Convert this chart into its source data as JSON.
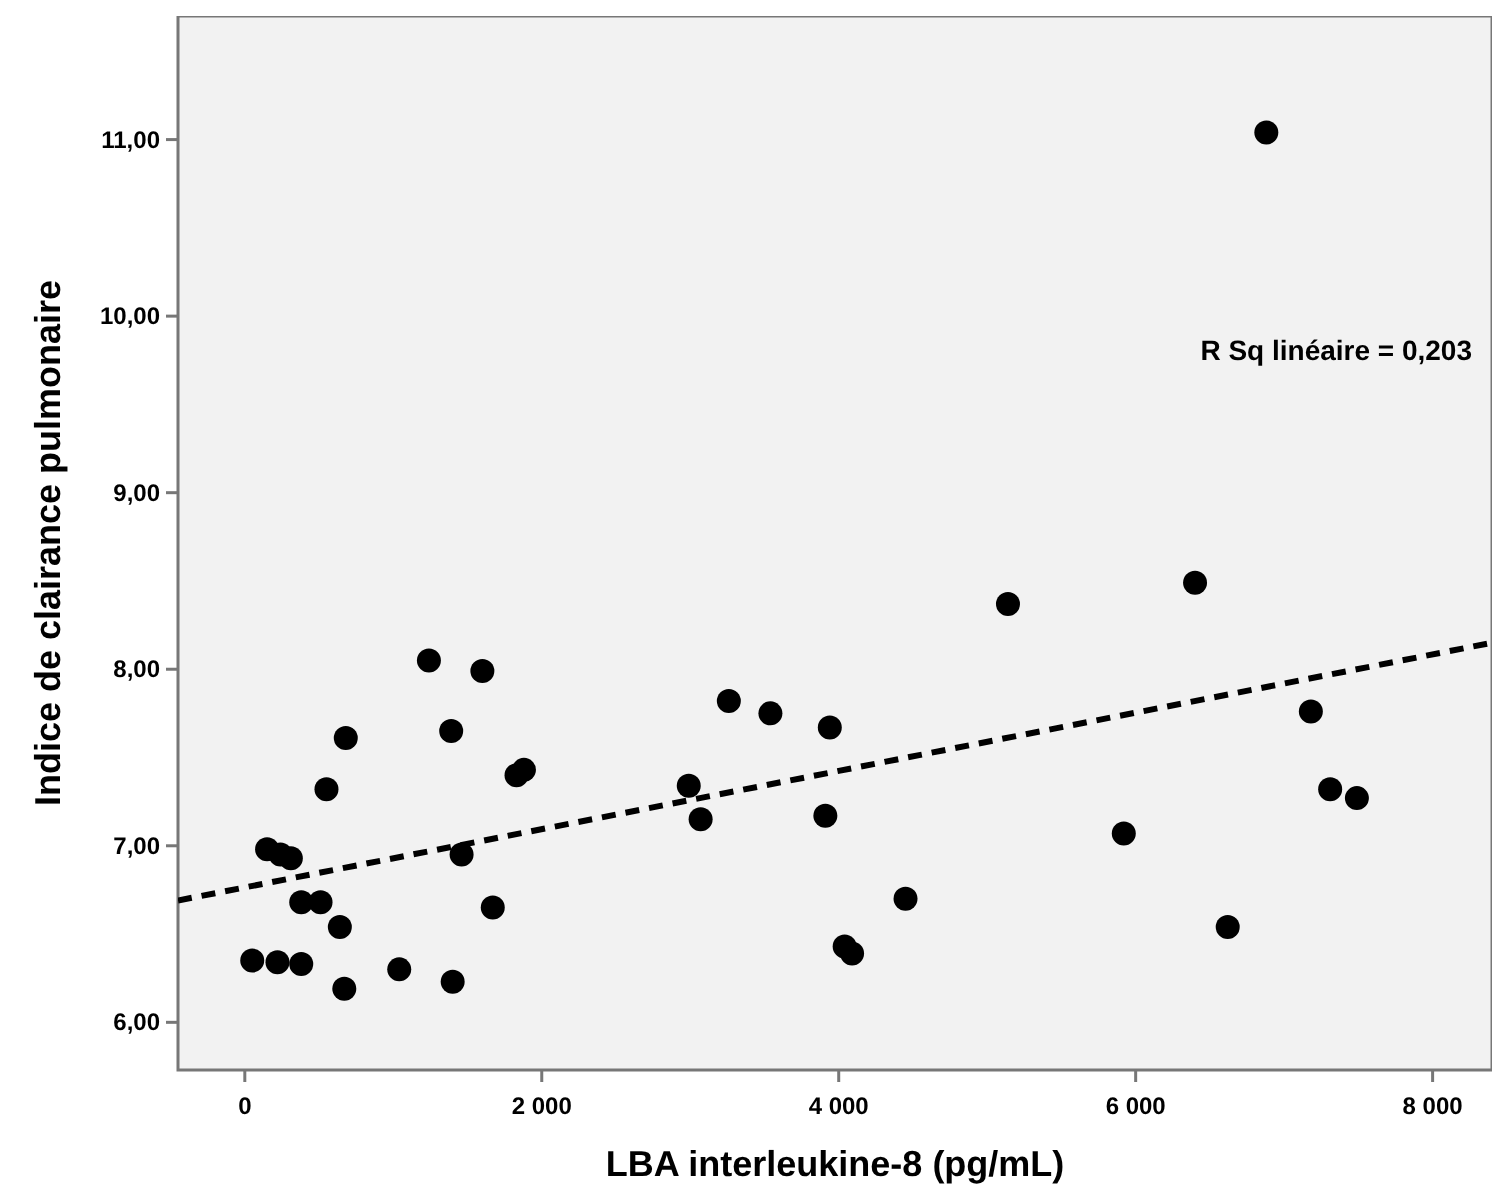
{
  "chart_data": {
    "type": "scatter",
    "xlabel": "LBA interleukine-8 (pg/mL)",
    "ylabel": "Indice de clairance pulmonaire",
    "xlim": [
      -450,
      8400
    ],
    "ylim": [
      5.73,
      11.7
    ],
    "xticks": [
      {
        "value": 0,
        "label": "0"
      },
      {
        "value": 2000,
        "label": "2 000"
      },
      {
        "value": 4000,
        "label": "4 000"
      },
      {
        "value": 6000,
        "label": "6 000"
      },
      {
        "value": 8000,
        "label": "8 000"
      }
    ],
    "yticks": [
      {
        "value": 6,
        "label": "6,00"
      },
      {
        "value": 7,
        "label": "7,00"
      },
      {
        "value": 8,
        "label": "8,00"
      },
      {
        "value": 9,
        "label": "9,00"
      },
      {
        "value": 10,
        "label": "10,00"
      },
      {
        "value": 11,
        "label": "11,00"
      }
    ],
    "grid": false,
    "marker": "circle",
    "annotations": [
      "R Sq linéaire = 0,203"
    ],
    "series": [
      {
        "color": "#000000",
        "x": [
          50,
          220,
          380,
          150,
          240,
          310,
          380,
          510,
          550,
          640,
          680,
          670,
          1040,
          1240,
          1390,
          1400,
          1460,
          1600,
          1670,
          1830,
          1880,
          2990,
          3070,
          3260,
          3540,
          3940,
          3910,
          4040,
          4090,
          4450,
          5140,
          5920,
          6400,
          6620,
          7180,
          7310,
          7490,
          6880
        ],
        "values": [
          6.35,
          6.34,
          6.33,
          6.98,
          6.95,
          6.93,
          6.68,
          6.68,
          7.32,
          6.54,
          7.61,
          6.19,
          6.3,
          8.05,
          7.65,
          6.23,
          6.95,
          7.99,
          6.65,
          7.4,
          7.43,
          7.34,
          7.15,
          7.82,
          7.75,
          7.67,
          7.17,
          6.43,
          6.39,
          6.7,
          8.37,
          7.07,
          8.49,
          6.54,
          7.76,
          7.32,
          7.27,
          11.04
        ]
      },
      {
        "type": "line",
        "color": "#000000",
        "line_style": "dashed",
        "marker": "none",
        "x": [
          -450,
          8400
        ],
        "values": [
          6.69,
          8.15
        ]
      }
    ]
  }
}
